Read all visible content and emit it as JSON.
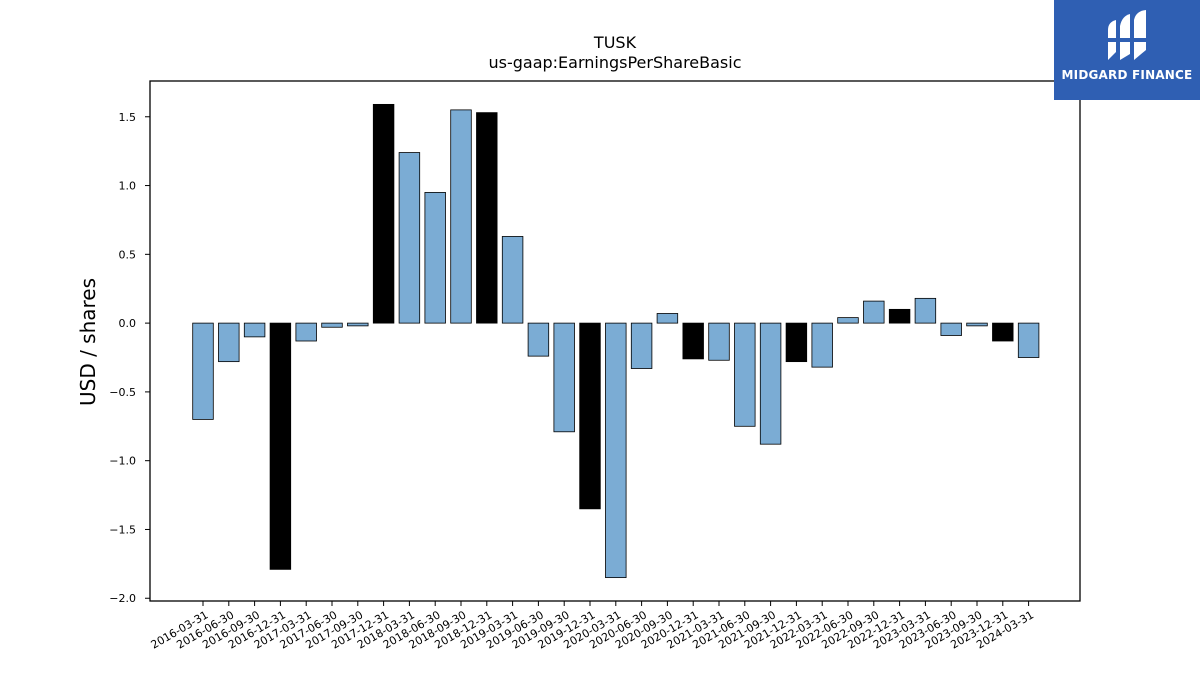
{
  "chart_data": {
    "type": "bar",
    "title": "TUSK",
    "subtitle": "us-gaap:EarningsPerShareBasic",
    "xlabel": "",
    "ylabel": "USD / shares",
    "ylim": [
      -2.02,
      1.76
    ],
    "yticks": [
      -2.0,
      -1.5,
      -1.0,
      -0.5,
      0.0,
      0.5,
      1.0,
      1.5
    ],
    "ytick_labels": [
      "−2.0",
      "−1.5",
      "−1.0",
      "−0.5",
      "0.0",
      "0.5",
      "1.0",
      "1.5"
    ],
    "grid": false,
    "categories": [
      "2016-03-31",
      "2016-06-30",
      "2016-09-30",
      "2016-12-31",
      "2017-03-31",
      "2017-06-30",
      "2017-09-30",
      "2017-12-31",
      "2018-03-31",
      "2018-06-30",
      "2018-09-30",
      "2018-12-31",
      "2019-03-31",
      "2019-06-30",
      "2019-09-30",
      "2019-12-31",
      "2020-03-31",
      "2020-06-30",
      "2020-09-30",
      "2020-12-31",
      "2021-03-31",
      "2021-06-30",
      "2021-09-30",
      "2021-12-31",
      "2022-03-31",
      "2022-06-30",
      "2022-09-30",
      "2022-12-31",
      "2023-03-31",
      "2023-06-30",
      "2023-09-30",
      "2023-12-31",
      "2024-03-31"
    ],
    "values": [
      -0.7,
      -0.28,
      -0.1,
      -1.79,
      -0.13,
      -0.03,
      -0.02,
      1.59,
      1.24,
      0.95,
      1.55,
      1.53,
      0.63,
      -0.24,
      -0.79,
      -1.35,
      -1.85,
      -0.33,
      0.07,
      -0.26,
      -0.27,
      -0.75,
      -0.88,
      -0.28,
      -0.32,
      0.04,
      0.16,
      0.1,
      0.18,
      -0.09,
      -0.02,
      -0.13,
      -0.25
    ],
    "highlighted": [
      false,
      false,
      false,
      true,
      false,
      false,
      false,
      true,
      false,
      false,
      false,
      true,
      false,
      false,
      false,
      true,
      false,
      false,
      false,
      true,
      false,
      false,
      false,
      true,
      false,
      false,
      false,
      true,
      false,
      false,
      false,
      true,
      false
    ],
    "colors": {
      "bar": "#7bacd4",
      "highlight": "#000000",
      "edge": "#000000"
    }
  },
  "logo": {
    "text": "MIDGARD FINANCE",
    "background": "#2f5fb3",
    "icon": "midgard-m-logo-icon"
  }
}
